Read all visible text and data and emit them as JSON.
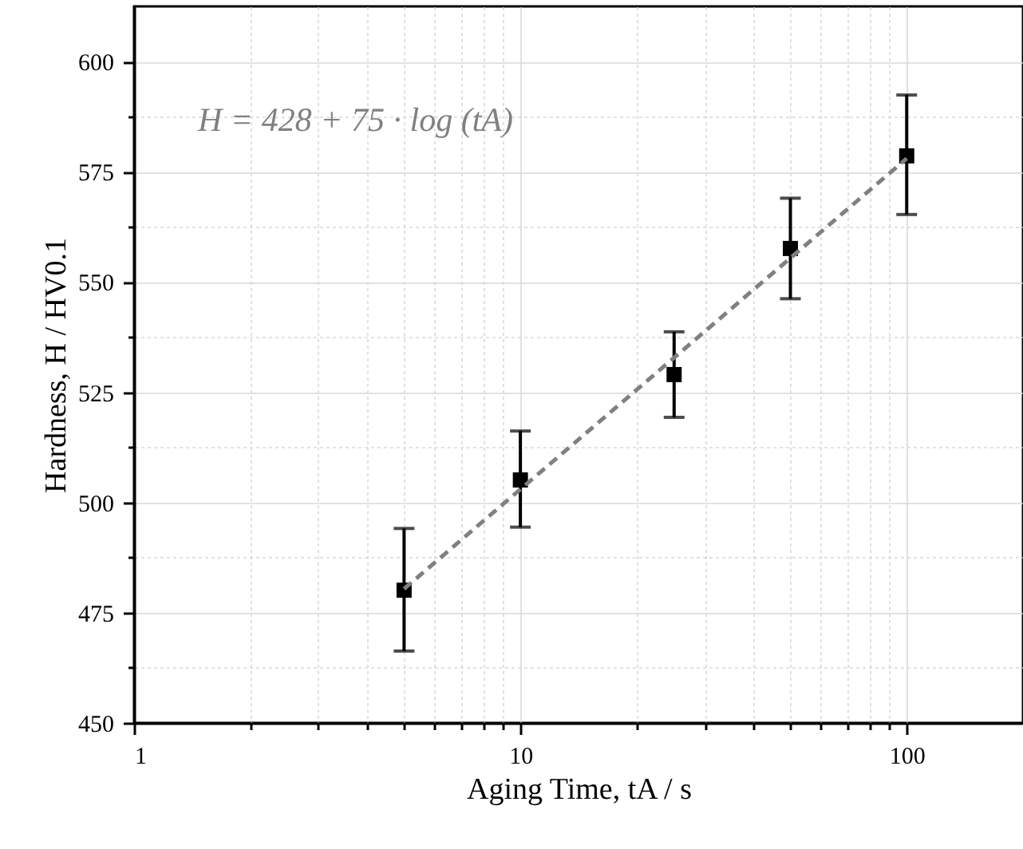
{
  "chart_data": {
    "type": "scatter",
    "xlabel": "Aging Time, tA / s",
    "ylabel": "Hardness, H / HV0.1",
    "annotations": [
      "H = 428 + 75 · log (tA)"
    ],
    "series": [
      {
        "type": "scatter",
        "color": "#000000",
        "marker": "square",
        "x": [
          5,
          10,
          25,
          50,
          100
        ],
        "values": [
          480.1,
          505.1,
          529.0,
          557.6,
          578.6
        ],
        "errors": [
          [
            466.3,
            494.1
          ],
          [
            494.4,
            516.2
          ],
          [
            519.3,
            538.7
          ],
          [
            546.2,
            569.0
          ],
          [
            565.3,
            592.4
          ]
        ]
      },
      {
        "type": "line",
        "color": "#808080",
        "line_style": "dashed",
        "marker": "none",
        "x": [
          5,
          100
        ],
        "values": [
          480.4,
          578.0
        ]
      }
    ],
    "log": "x",
    "xlim": [
      1,
      200
    ],
    "xticks": [
      1,
      {
        "value": 2,
        "label": null
      },
      {
        "value": 3,
        "label": null
      },
      {
        "value": 4,
        "label": null
      },
      {
        "value": 5,
        "label": null
      },
      {
        "value": 6,
        "label": null
      },
      {
        "value": 7,
        "label": null
      },
      {
        "value": 8,
        "label": null
      },
      {
        "value": 9,
        "label": null
      },
      10,
      {
        "value": 20,
        "label": null
      },
      {
        "value": 30,
        "label": null
      },
      {
        "value": 40,
        "label": null
      },
      {
        "value": 50,
        "label": null
      },
      {
        "value": 60,
        "label": null
      },
      {
        "value": 70,
        "label": null
      },
      {
        "value": 80,
        "label": null
      },
      {
        "value": 90,
        "label": null
      },
      100
    ],
    "ylim": [
      450,
      612.5
    ],
    "yticks": [
      450,
      {
        "value": 462.5,
        "label": null
      },
      475,
      {
        "value": 487.5,
        "label": null
      },
      500,
      {
        "value": 512.5,
        "label": null
      },
      525,
      {
        "value": 537.5,
        "label": null
      },
      550,
      {
        "value": 562.5,
        "label": null
      },
      575,
      {
        "value": 587.5,
        "label": null
      },
      600
    ],
    "grid": true
  }
}
